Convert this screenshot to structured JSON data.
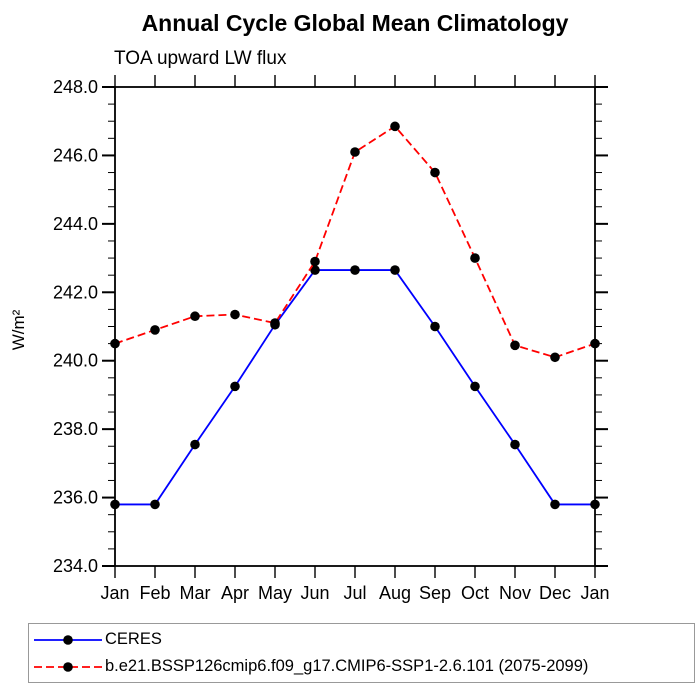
{
  "chart_data": {
    "type": "line",
    "title": "Annual Cycle Global Mean Climatology",
    "subtitle": "TOA upward LW flux",
    "ylabel": "W/m²",
    "xlabel": "",
    "x_categories": [
      "Jan",
      "Feb",
      "Mar",
      "Apr",
      "May",
      "Jun",
      "Jul",
      "Aug",
      "Sep",
      "Oct",
      "Nov",
      "Dec",
      "Jan"
    ],
    "ylim": [
      234.0,
      248.0
    ],
    "ytick_major_interval": 2.0,
    "ytick_minor_interval": 0.5,
    "ytick_labels": [
      "248.0",
      "246.0",
      "244.0",
      "242.0",
      "240.0",
      "238.0",
      "236.0",
      "234.0"
    ],
    "grid": false,
    "legend_position": "bottom",
    "axis_color": "#000000",
    "series": [
      {
        "name": "CERES",
        "color": "#0000ff",
        "line_style": "solid",
        "marker": "circle",
        "marker_color": "#000000",
        "values": [
          235.8,
          235.8,
          237.55,
          239.25,
          241.05,
          242.65,
          242.65,
          242.65,
          241.0,
          239.25,
          237.55,
          235.8,
          235.8
        ]
      },
      {
        "name": "b.e21.BSSP126cmip6.f09_g17.CMIP6-SSP1-2.6.101 (2075-2099)",
        "color": "#ff0000",
        "line_style": "dashed",
        "marker": "circle",
        "marker_color": "#000000",
        "values": [
          240.5,
          240.9,
          241.3,
          241.35,
          241.1,
          242.9,
          246.1,
          246.85,
          245.5,
          243.0,
          240.45,
          240.1,
          240.5
        ]
      }
    ]
  }
}
